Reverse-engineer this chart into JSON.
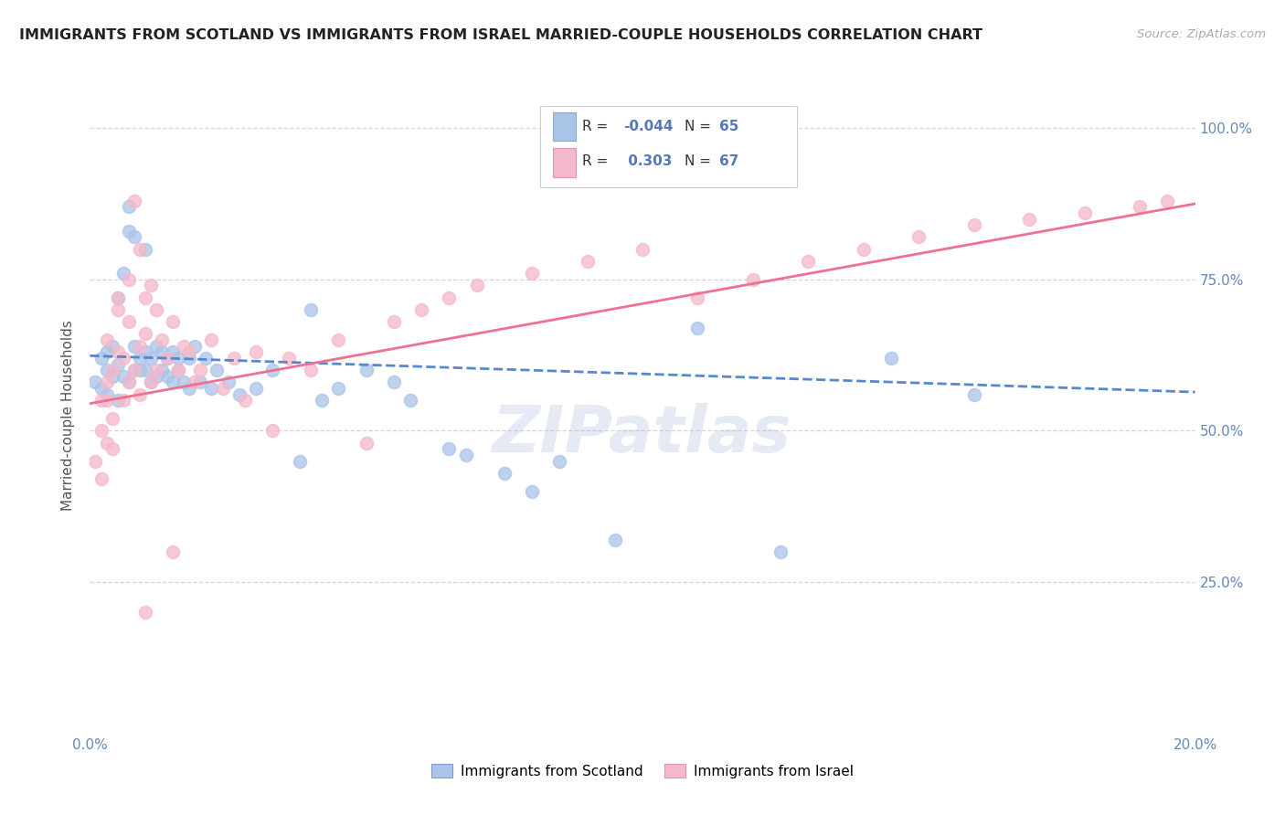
{
  "title": "IMMIGRANTS FROM SCOTLAND VS IMMIGRANTS FROM ISRAEL MARRIED-COUPLE HOUSEHOLDS CORRELATION CHART",
  "source": "Source: ZipAtlas.com",
  "ylabel_left": "Married-couple Households",
  "x_min": 0.0,
  "x_max": 0.2,
  "y_min": 0.0,
  "y_max": 1.05,
  "color_scotland": "#aac4e8",
  "color_israel": "#f5b8ca",
  "line_color_scotland": "#5588cc",
  "line_color_israel": "#f07090",
  "background_color": "#ffffff",
  "grid_color": "#cccccc",
  "legend_text_color": "#5577bb",
  "title_color": "#222222",
  "source_color": "#aaaaaa",
  "tick_color": "#6688bb",
  "scotland_x": [
    0.001,
    0.002,
    0.002,
    0.003,
    0.003,
    0.003,
    0.004,
    0.004,
    0.005,
    0.005,
    0.005,
    0.006,
    0.006,
    0.007,
    0.007,
    0.007,
    0.008,
    0.008,
    0.008,
    0.009,
    0.009,
    0.01,
    0.01,
    0.01,
    0.011,
    0.011,
    0.012,
    0.012,
    0.013,
    0.013,
    0.014,
    0.014,
    0.015,
    0.015,
    0.016,
    0.016,
    0.017,
    0.018,
    0.018,
    0.019,
    0.02,
    0.021,
    0.022,
    0.023,
    0.025,
    0.027,
    0.03,
    0.033,
    0.038,
    0.042,
    0.05,
    0.058,
    0.068,
    0.075,
    0.085,
    0.095,
    0.11,
    0.125,
    0.145,
    0.16,
    0.04,
    0.045,
    0.055,
    0.065,
    0.08
  ],
  "scotland_y": [
    0.58,
    0.62,
    0.57,
    0.6,
    0.56,
    0.63,
    0.59,
    0.64,
    0.55,
    0.72,
    0.61,
    0.59,
    0.76,
    0.58,
    0.83,
    0.87,
    0.6,
    0.64,
    0.82,
    0.6,
    0.62,
    0.6,
    0.63,
    0.8,
    0.58,
    0.62,
    0.59,
    0.64,
    0.6,
    0.63,
    0.59,
    0.62,
    0.58,
    0.63,
    0.6,
    0.62,
    0.58,
    0.62,
    0.57,
    0.64,
    0.58,
    0.62,
    0.57,
    0.6,
    0.58,
    0.56,
    0.57,
    0.6,
    0.45,
    0.55,
    0.6,
    0.55,
    0.46,
    0.43,
    0.45,
    0.32,
    0.67,
    0.3,
    0.62,
    0.56,
    0.7,
    0.57,
    0.58,
    0.47,
    0.4
  ],
  "israel_x": [
    0.001,
    0.002,
    0.002,
    0.003,
    0.003,
    0.003,
    0.004,
    0.004,
    0.005,
    0.005,
    0.005,
    0.006,
    0.006,
    0.007,
    0.007,
    0.008,
    0.008,
    0.009,
    0.009,
    0.01,
    0.01,
    0.011,
    0.011,
    0.012,
    0.012,
    0.013,
    0.014,
    0.015,
    0.016,
    0.017,
    0.018,
    0.019,
    0.02,
    0.022,
    0.024,
    0.026,
    0.028,
    0.03,
    0.033,
    0.036,
    0.04,
    0.045,
    0.05,
    0.055,
    0.06,
    0.065,
    0.07,
    0.08,
    0.09,
    0.1,
    0.11,
    0.12,
    0.13,
    0.14,
    0.15,
    0.16,
    0.17,
    0.18,
    0.19,
    0.195,
    0.002,
    0.003,
    0.004,
    0.007,
    0.009,
    0.01,
    0.015
  ],
  "israel_y": [
    0.45,
    0.55,
    0.5,
    0.48,
    0.58,
    0.65,
    0.52,
    0.6,
    0.7,
    0.63,
    0.72,
    0.55,
    0.62,
    0.58,
    0.75,
    0.6,
    0.88,
    0.64,
    0.8,
    0.66,
    0.72,
    0.58,
    0.74,
    0.6,
    0.7,
    0.65,
    0.62,
    0.68,
    0.6,
    0.64,
    0.63,
    0.58,
    0.6,
    0.65,
    0.57,
    0.62,
    0.55,
    0.63,
    0.5,
    0.62,
    0.6,
    0.65,
    0.48,
    0.68,
    0.7,
    0.72,
    0.74,
    0.76,
    0.78,
    0.8,
    0.72,
    0.75,
    0.78,
    0.8,
    0.82,
    0.84,
    0.85,
    0.86,
    0.87,
    0.88,
    0.42,
    0.55,
    0.47,
    0.68,
    0.56,
    0.2,
    0.3
  ]
}
